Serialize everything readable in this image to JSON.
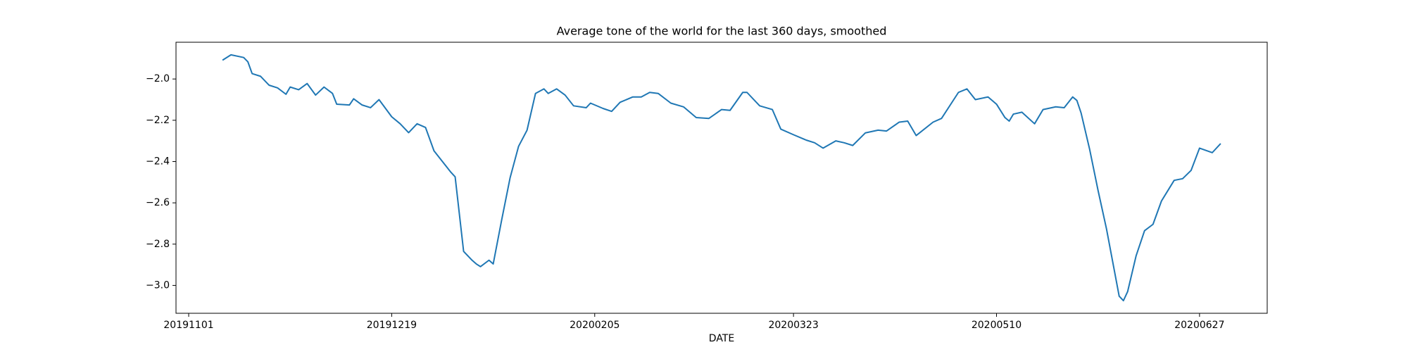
{
  "chart_data": {
    "type": "line",
    "title": "Average tone of the world for the last 360 days, smoothed",
    "xlabel": "DATE",
    "color": "#1f77b4",
    "x": [
      "2019-11-09",
      "2019-11-11",
      "2019-11-14",
      "2019-11-15",
      "2019-11-16",
      "2019-11-18",
      "2019-11-20",
      "2019-11-22",
      "2019-11-24",
      "2019-11-25",
      "2019-11-27",
      "2019-11-29",
      "2019-12-01",
      "2019-12-03",
      "2019-12-05",
      "2019-12-06",
      "2019-12-09",
      "2019-12-10",
      "2019-12-12",
      "2019-12-14",
      "2019-12-16",
      "2019-12-19",
      "2019-12-21",
      "2019-12-23",
      "2019-12-25",
      "2019-12-27",
      "2019-12-29",
      "2019-12-31",
      "2020-01-02",
      "2020-01-03",
      "2020-01-05",
      "2020-01-07",
      "2020-01-08",
      "2020-01-09",
      "2020-01-11",
      "2020-01-12",
      "2020-01-14",
      "2020-01-16",
      "2020-01-18",
      "2020-01-20",
      "2020-01-22",
      "2020-01-24",
      "2020-01-25",
      "2020-01-27",
      "2020-01-29",
      "2020-01-31",
      "2020-02-03",
      "2020-02-04",
      "2020-02-07",
      "2020-02-09",
      "2020-02-11",
      "2020-02-14",
      "2020-02-16",
      "2020-02-18",
      "2020-02-20",
      "2020-02-23",
      "2020-02-26",
      "2020-02-29",
      "2020-03-03",
      "2020-03-06",
      "2020-03-08",
      "2020-03-11",
      "2020-03-12",
      "2020-03-15",
      "2020-03-18",
      "2020-03-20",
      "2020-03-23",
      "2020-03-26",
      "2020-03-28",
      "2020-03-30",
      "2020-04-02",
      "2020-04-04",
      "2020-04-06",
      "2020-04-09",
      "2020-04-12",
      "2020-04-14",
      "2020-04-17",
      "2020-04-19",
      "2020-04-21",
      "2020-04-25",
      "2020-04-27",
      "2020-05-01",
      "2020-05-03",
      "2020-05-05",
      "2020-05-08",
      "2020-05-10",
      "2020-05-12",
      "2020-05-13",
      "2020-05-14",
      "2020-05-16",
      "2020-05-19",
      "2020-05-21",
      "2020-05-24",
      "2020-05-26",
      "2020-05-28",
      "2020-05-29",
      "2020-05-30",
      "2020-06-01",
      "2020-06-03",
      "2020-06-05",
      "2020-06-08",
      "2020-06-09",
      "2020-06-10",
      "2020-06-12",
      "2020-06-14",
      "2020-06-16",
      "2020-06-18",
      "2020-06-21",
      "2020-06-23",
      "2020-06-25",
      "2020-06-27",
      "2020-06-30",
      "2020-07-02"
    ],
    "values": [
      -1.909,
      -1.883,
      -1.896,
      -1.917,
      -1.974,
      -1.987,
      -2.03,
      -2.043,
      -2.074,
      -2.039,
      -2.052,
      -2.022,
      -2.078,
      -2.039,
      -2.07,
      -2.122,
      -2.126,
      -2.096,
      -2.126,
      -2.139,
      -2.1,
      -2.183,
      -2.217,
      -2.26,
      -2.217,
      -2.235,
      -2.348,
      -2.4,
      -2.452,
      -2.474,
      -2.835,
      -2.878,
      -2.896,
      -2.909,
      -2.878,
      -2.896,
      -2.683,
      -2.478,
      -2.326,
      -2.248,
      -2.07,
      -2.048,
      -2.07,
      -2.048,
      -2.078,
      -2.13,
      -2.139,
      -2.117,
      -2.143,
      -2.157,
      -2.113,
      -2.087,
      -2.087,
      -2.065,
      -2.07,
      -2.117,
      -2.135,
      -2.187,
      -2.191,
      -2.148,
      -2.152,
      -2.065,
      -2.065,
      -2.13,
      -2.148,
      -2.243,
      -2.27,
      -2.296,
      -2.309,
      -2.335,
      -2.3,
      -2.309,
      -2.322,
      -2.261,
      -2.248,
      -2.252,
      -2.209,
      -2.204,
      -2.274,
      -2.209,
      -2.191,
      -2.065,
      -2.048,
      -2.1,
      -2.087,
      -2.122,
      -2.187,
      -2.204,
      -2.17,
      -2.161,
      -2.217,
      -2.148,
      -2.135,
      -2.139,
      -2.087,
      -2.104,
      -2.165,
      -2.339,
      -2.539,
      -2.726,
      -3.052,
      -3.074,
      -3.03,
      -2.857,
      -2.735,
      -2.704,
      -2.591,
      -2.491,
      -2.483,
      -2.443,
      -2.335,
      -2.357,
      -2.313
    ],
    "xlim": [
      "2019-10-29",
      "2020-07-13"
    ],
    "xticks": [
      {
        "value": "2019-11-01",
        "label": "20191101"
      },
      {
        "value": "2019-12-19",
        "label": "20191219"
      },
      {
        "value": "2020-02-05",
        "label": "20200205"
      },
      {
        "value": "2020-03-23",
        "label": "20200323"
      },
      {
        "value": "2020-05-10",
        "label": "20200510"
      },
      {
        "value": "2020-06-27",
        "label": "20200627"
      }
    ],
    "ylim": [
      -3.135,
      -1.822
    ],
    "yticks": [
      {
        "value": -2.0,
        "label": "−2.0"
      },
      {
        "value": -2.2,
        "label": "−2.2"
      },
      {
        "value": -2.4,
        "label": "−2.4"
      },
      {
        "value": -2.6,
        "label": "−2.6"
      },
      {
        "value": -2.8,
        "label": "−2.8"
      },
      {
        "value": -3.0,
        "label": "−3.0"
      }
    ],
    "grid": false
  }
}
